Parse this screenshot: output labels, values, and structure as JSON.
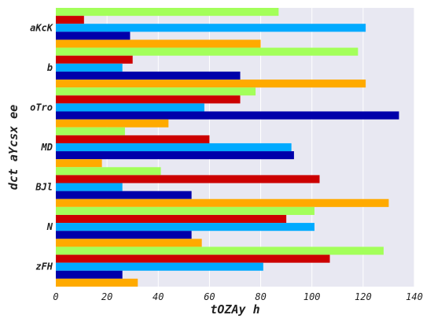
{
  "chart_data": {
    "type": "bar",
    "orientation": "horizontal",
    "xlabel": "tOZAy  h",
    "ylabel": "dct aYcsx ee",
    "xlim": [
      0,
      140
    ],
    "xticks": [
      0,
      20,
      40,
      60,
      80,
      100,
      120,
      140
    ],
    "grid": true,
    "legend": "none",
    "background": "#e8e8f2",
    "categories": [
      "aKcK",
      "b",
      "oTro",
      "MD",
      "BJl",
      "N",
      "zFH"
    ],
    "series": [
      {
        "color": "#a3ff5a",
        "values": [
          87,
          118,
          78,
          27,
          41,
          101,
          128
        ]
      },
      {
        "color": "#cc0000",
        "values": [
          11,
          30,
          72,
          60,
          103,
          90,
          107
        ]
      },
      {
        "color": "#00aaff",
        "values": [
          121,
          26,
          58,
          92,
          26,
          101,
          81
        ]
      },
      {
        "color": "#0000aa",
        "values": [
          29,
          72,
          134,
          93,
          53,
          53,
          26
        ]
      },
      {
        "color": "#ffaa00",
        "values": [
          80,
          121,
          44,
          18,
          130,
          57,
          32
        ]
      }
    ]
  }
}
